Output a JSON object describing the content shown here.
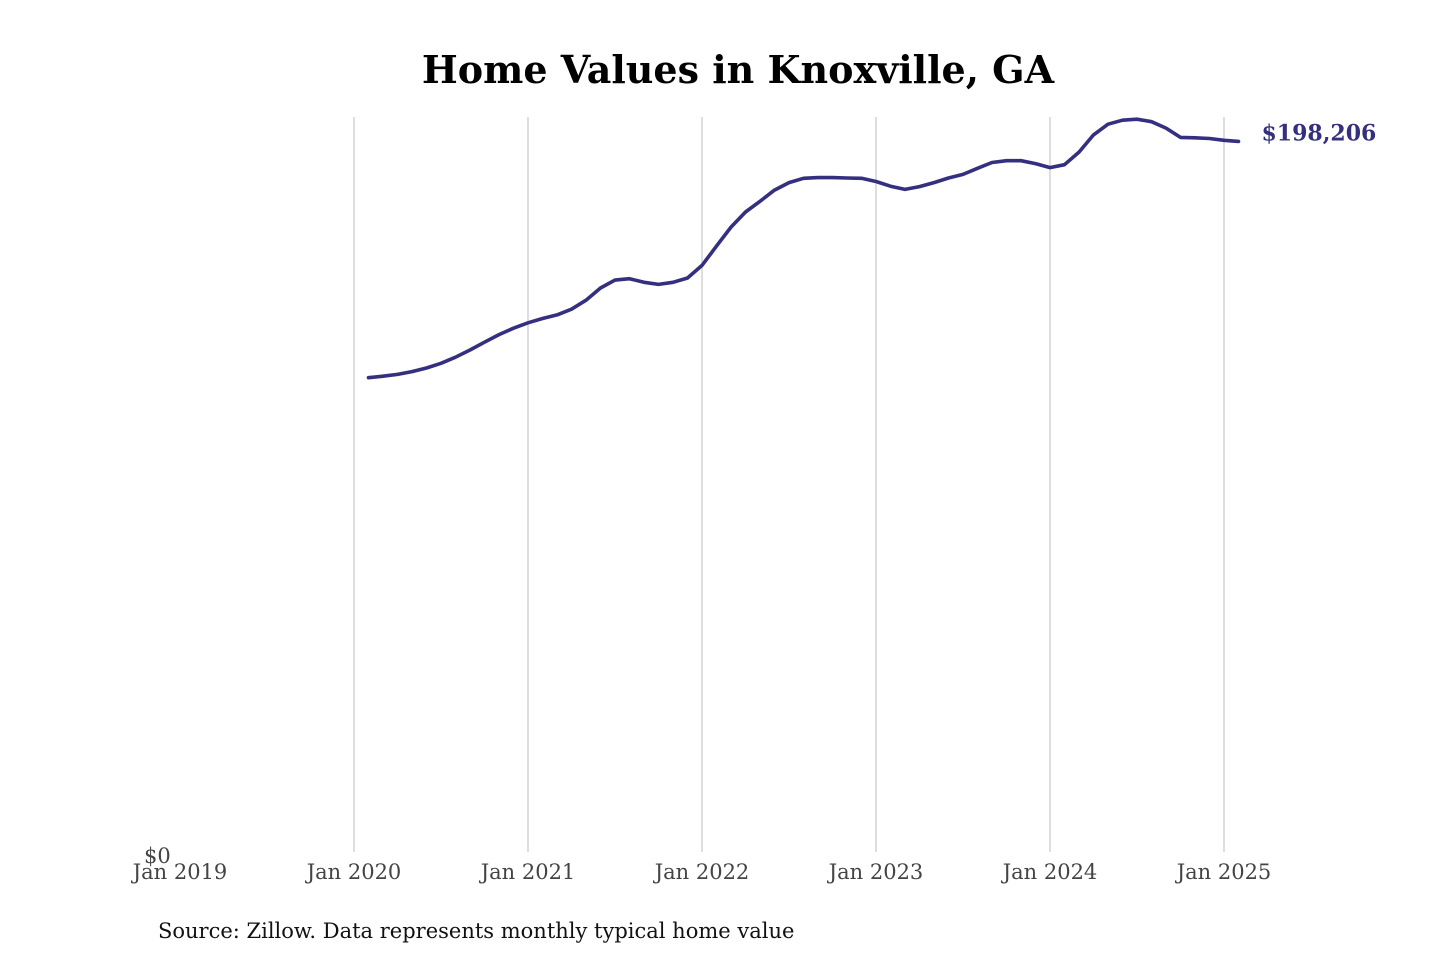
{
  "chart_data": {
    "type": "line",
    "title": "Home Values in Knoxville, GA",
    "source": "Source: Zillow. Data represents monthly typical home value",
    "xlabel": "",
    "ylabel": "",
    "y_tick_labels": [
      "$0"
    ],
    "ylim": [
      0,
      205000
    ],
    "xlim": [
      "2019-01",
      "2025-03"
    ],
    "x_tick_labels": [
      "Jan 2019",
      "Jan 2020",
      "Jan 2021",
      "Jan 2022",
      "Jan 2023",
      "Jan 2024",
      "Jan 2025"
    ],
    "x_ticks": [
      "2019-01",
      "2020-01",
      "2021-01",
      "2022-01",
      "2023-01",
      "2024-01",
      "2025-01"
    ],
    "grid": "vertical",
    "line_color": "#34307f",
    "end_label": "$198,206",
    "series": [
      {
        "x": [
          "2020-02",
          "2020-03",
          "2020-04",
          "2020-05",
          "2020-06",
          "2020-07",
          "2020-08",
          "2020-09",
          "2020-10",
          "2020-11",
          "2020-12",
          "2021-01",
          "2021-02",
          "2021-03",
          "2021-04",
          "2021-05",
          "2021-06",
          "2021-07",
          "2021-08",
          "2021-09",
          "2021-10",
          "2021-11",
          "2021-12",
          "2022-01",
          "2022-02",
          "2022-03",
          "2022-04",
          "2022-05",
          "2022-06",
          "2022-07",
          "2022-08",
          "2022-09",
          "2022-10",
          "2022-11",
          "2022-12",
          "2023-01",
          "2023-02",
          "2023-03",
          "2023-04",
          "2023-05",
          "2023-06",
          "2023-07",
          "2023-08",
          "2023-09",
          "2023-10",
          "2023-11",
          "2023-12",
          "2024-01",
          "2024-02",
          "2024-03",
          "2024-04",
          "2024-05",
          "2024-06",
          "2024-07",
          "2024-08",
          "2024-09",
          "2024-10",
          "2024-11",
          "2024-12",
          "2025-01",
          "2025-02"
        ],
        "values": [
          132300,
          132700,
          133200,
          134000,
          135000,
          136300,
          138000,
          140000,
          142200,
          144300,
          146100,
          147600,
          148800,
          149800,
          151400,
          153900,
          157300,
          159500,
          159900,
          158900,
          158300,
          158900,
          160100,
          163600,
          169000,
          174300,
          178500,
          181500,
          184600,
          186700,
          187900,
          188100,
          188100,
          188000,
          187900,
          187000,
          185700,
          184800,
          185600,
          186700,
          188000,
          189000,
          190700,
          192300,
          192800,
          192800,
          192000,
          190900,
          191700,
          195200,
          200000,
          203000,
          204100,
          204400,
          203700,
          201900,
          199300,
          199200,
          199000,
          198500,
          198206
        ]
      }
    ]
  }
}
